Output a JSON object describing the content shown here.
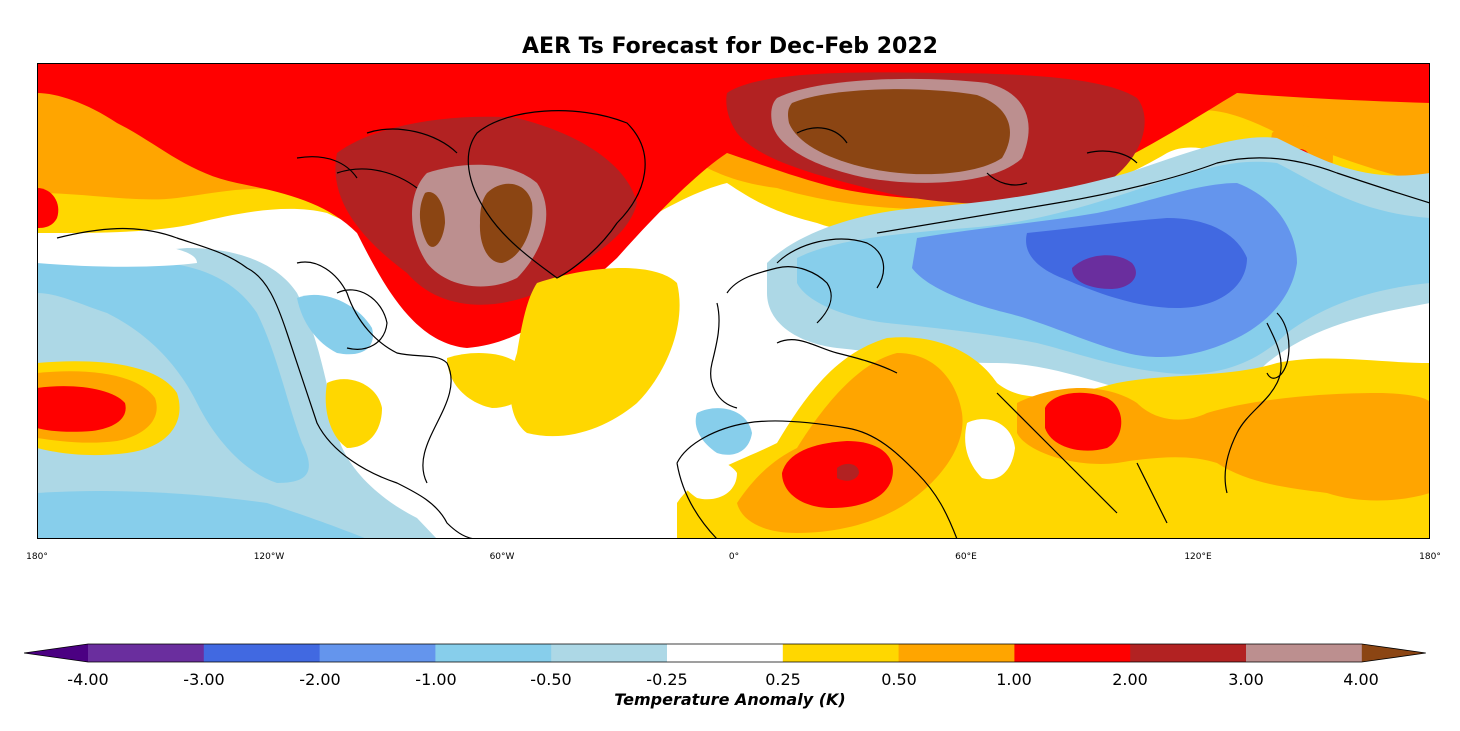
{
  "title": "AER Ts Forecast for Dec-Feb 2022",
  "lon_ticks": [
    "180°",
    "120°W",
    "60°W",
    "0°",
    "60°E",
    "120°E",
    "180°"
  ],
  "colorbar": {
    "title": "Temperature Anomaly (K)",
    "tick_labels": [
      "-4.00",
      "-3.00",
      "-2.00",
      "-1.00",
      "-0.50",
      "-0.25",
      "0.25",
      "0.50",
      "1.00",
      "2.00",
      "3.00",
      "4.00"
    ],
    "under_color": "#4b0082",
    "over_color": "#8b4513",
    "colors": [
      "#6a2e9e",
      "#4169e1",
      "#6495ed",
      "#87ceeb",
      "#add8e6",
      "#ffffff",
      "#ffd700",
      "#ffa500",
      "#ff0000",
      "#b22222",
      "#bc8f8f"
    ]
  },
  "map": {
    "projection": "equirectangular",
    "extent": "180W to 180E, about 15N to 85N",
    "variable": "Ts",
    "units": "K"
  }
}
